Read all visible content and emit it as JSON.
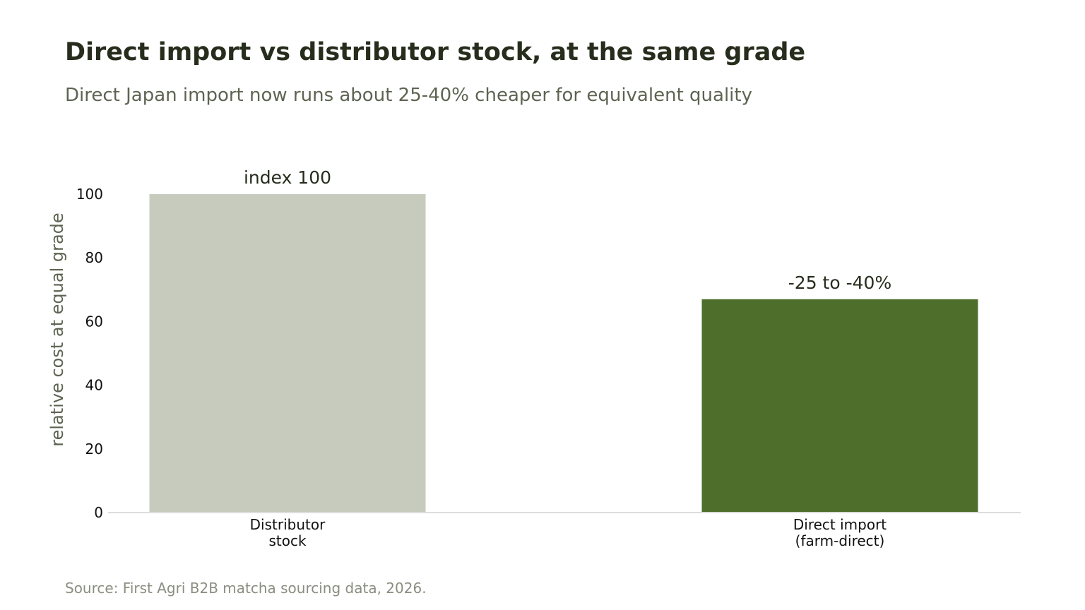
{
  "chart_data": {
    "type": "bar",
    "title": "Direct import vs distributor stock, at the same grade",
    "subtitle": "Direct Japan import now runs about 25-40% cheaper for equivalent quality",
    "ylabel": "relative cost at equal grade",
    "xlabel": "",
    "ylim": [
      0,
      100
    ],
    "yticks": [
      0,
      20,
      40,
      60,
      80,
      100
    ],
    "categories": [
      [
        "Distributor",
        "stock"
      ],
      [
        "Direct import",
        "(farm-direct)"
      ]
    ],
    "values": [
      100,
      67
    ],
    "data_labels": [
      "index 100",
      "-25 to -40%"
    ],
    "colors": [
      "#c6cbbe",
      "#4e6e2c"
    ],
    "axis_color": "#dddddd",
    "grid": false,
    "legend": "none",
    "source": "Source: First Agri B2B matcha sourcing data, 2026."
  }
}
